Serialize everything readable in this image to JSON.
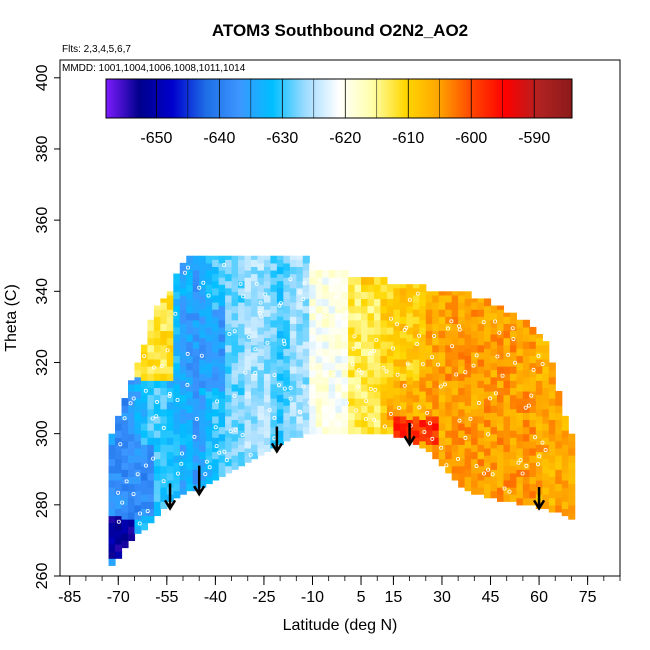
{
  "chart_data": {
    "type": "heatmap",
    "title": "ATOM3 Southbound O2N2_AO2",
    "annotations": {
      "flights": "Flts: 2,3,4,5,6,7",
      "dates": "MMDD: 1001,1004,1006,1008,1011,1014"
    },
    "xlabel": "Latitude (deg N)",
    "ylabel": "Theta (C)",
    "xlim": [
      -88,
      85
    ],
    "ylim": [
      260,
      405
    ],
    "x_major_ticks": [
      -85,
      -70,
      -55,
      -40,
      -25,
      -10,
      5,
      15,
      30,
      45,
      60,
      75
    ],
    "x_minor_tick_step": 5,
    "y_ticks": [
      260,
      280,
      300,
      320,
      340,
      360,
      380,
      400
    ],
    "colorbar": {
      "range": [
        -658,
        -584
      ],
      "tick_values": [
        -650,
        -640,
        -630,
        -620,
        -610,
        -600,
        -590
      ],
      "tick_labels": [
        "-650",
        "-640",
        "-630",
        "-620",
        "-610",
        "-600",
        "-590"
      ],
      "colors": [
        "#7e1cff",
        "#00008b",
        "#0000cd",
        "#1e6ee6",
        "#3c96ff",
        "#00bfff",
        "#9fdcff",
        "#ffffff",
        "#ffffaa",
        "#ffd700",
        "#ffa500",
        "#ff4500",
        "#ff0000",
        "#b22222",
        "#8b1a1a"
      ]
    },
    "columns": [
      {
        "lat": -72,
        "bottom": 263,
        "top": 300,
        "v": -636
      },
      {
        "lat": -70,
        "bottom": 265,
        "top": 305,
        "v": -640
      },
      {
        "lat": -68,
        "bottom": 268,
        "top": 310,
        "v": -638
      },
      {
        "lat": -66,
        "bottom": 270,
        "top": 315,
        "v": -636
      },
      {
        "lat": -64,
        "bottom": 272,
        "top": 320,
        "v": -634
      },
      {
        "lat": -62,
        "bottom": 273,
        "top": 325,
        "v": -632
      },
      {
        "lat": -60,
        "bottom": 275,
        "top": 332,
        "v": -630
      },
      {
        "lat": -58,
        "bottom": 277,
        "top": 336,
        "v": -630
      },
      {
        "lat": -56,
        "bottom": 279,
        "top": 338,
        "v": -630
      },
      {
        "lat": -54,
        "bottom": 281,
        "top": 340,
        "v": -632
      },
      {
        "lat": -52,
        "bottom": 282,
        "top": 345,
        "v": -632
      },
      {
        "lat": -50,
        "bottom": 283,
        "top": 348,
        "v": -634
      },
      {
        "lat": -48,
        "bottom": 284,
        "top": 350,
        "v": -634
      },
      {
        "lat": -46,
        "bottom": 284,
        "top": 350,
        "v": -636
      },
      {
        "lat": -44,
        "bottom": 285,
        "top": 350,
        "v": -634
      },
      {
        "lat": -42,
        "bottom": 286,
        "top": 350,
        "v": -632
      },
      {
        "lat": -40,
        "bottom": 287,
        "top": 350,
        "v": -630
      },
      {
        "lat": -38,
        "bottom": 288,
        "top": 350,
        "v": -630
      },
      {
        "lat": -36,
        "bottom": 289,
        "top": 350,
        "v": -628
      },
      {
        "lat": -34,
        "bottom": 290,
        "top": 350,
        "v": -628
      },
      {
        "lat": -32,
        "bottom": 291,
        "top": 350,
        "v": -628
      },
      {
        "lat": -30,
        "bottom": 292,
        "top": 350,
        "v": -626
      },
      {
        "lat": -28,
        "bottom": 293,
        "top": 350,
        "v": -626
      },
      {
        "lat": -26,
        "bottom": 294,
        "top": 350,
        "v": -626
      },
      {
        "lat": -24,
        "bottom": 295,
        "top": 350,
        "v": -626
      },
      {
        "lat": -22,
        "bottom": 296,
        "top": 350,
        "v": -628
      },
      {
        "lat": -20,
        "bottom": 297,
        "top": 350,
        "v": -630
      },
      {
        "lat": -18,
        "bottom": 298,
        "top": 350,
        "v": -628
      },
      {
        "lat": -16,
        "bottom": 299,
        "top": 350,
        "v": -626
      },
      {
        "lat": -14,
        "bottom": 299,
        "top": 350,
        "v": -626
      },
      {
        "lat": -12,
        "bottom": 300,
        "top": 350,
        "v": -626
      },
      {
        "lat": -10,
        "bottom": 300,
        "top": 348,
        "v": -624
      },
      {
        "lat": -8,
        "bottom": 300,
        "top": 346,
        "v": -622
      },
      {
        "lat": -6,
        "bottom": 300,
        "top": 346,
        "v": -621
      },
      {
        "lat": -4,
        "bottom": 300,
        "top": 346,
        "v": -619
      },
      {
        "lat": -2,
        "bottom": 300,
        "top": 346,
        "v": -617
      },
      {
        "lat": 0,
        "bottom": 300,
        "top": 346,
        "v": -615
      },
      {
        "lat": 2,
        "bottom": 300,
        "top": 344,
        "v": -613
      },
      {
        "lat": 4,
        "bottom": 300,
        "top": 344,
        "v": -611
      },
      {
        "lat": 6,
        "bottom": 300,
        "top": 344,
        "v": -610
      },
      {
        "lat": 8,
        "bottom": 300,
        "top": 344,
        "v": -610
      },
      {
        "lat": 10,
        "bottom": 300,
        "top": 344,
        "v": -610
      },
      {
        "lat": 12,
        "bottom": 300,
        "top": 344,
        "v": -610
      },
      {
        "lat": 14,
        "bottom": 300,
        "top": 342,
        "v": -610
      },
      {
        "lat": 16,
        "bottom": 299,
        "top": 342,
        "v": -609
      },
      {
        "lat": 18,
        "bottom": 299,
        "top": 342,
        "v": -609
      },
      {
        "lat": 20,
        "bottom": 298,
        "top": 342,
        "v": -610
      },
      {
        "lat": 22,
        "bottom": 297,
        "top": 342,
        "v": -609
      },
      {
        "lat": 24,
        "bottom": 296,
        "top": 342,
        "v": -608
      },
      {
        "lat": 26,
        "bottom": 295,
        "top": 340,
        "v": -606
      },
      {
        "lat": 28,
        "bottom": 293,
        "top": 340,
        "v": -606
      },
      {
        "lat": 30,
        "bottom": 291,
        "top": 340,
        "v": -606
      },
      {
        "lat": 32,
        "bottom": 289,
        "top": 340,
        "v": -605
      },
      {
        "lat": 34,
        "bottom": 287,
        "top": 340,
        "v": -605
      },
      {
        "lat": 36,
        "bottom": 285,
        "top": 340,
        "v": -605
      },
      {
        "lat": 38,
        "bottom": 284,
        "top": 340,
        "v": -605
      },
      {
        "lat": 40,
        "bottom": 283,
        "top": 338,
        "v": -605
      },
      {
        "lat": 42,
        "bottom": 283,
        "top": 338,
        "v": -605
      },
      {
        "lat": 44,
        "bottom": 282,
        "top": 338,
        "v": -605
      },
      {
        "lat": 46,
        "bottom": 282,
        "top": 336,
        "v": -605
      },
      {
        "lat": 48,
        "bottom": 281,
        "top": 336,
        "v": -605
      },
      {
        "lat": 50,
        "bottom": 281,
        "top": 334,
        "v": -605
      },
      {
        "lat": 52,
        "bottom": 281,
        "top": 334,
        "v": -605
      },
      {
        "lat": 54,
        "bottom": 280,
        "top": 332,
        "v": -605
      },
      {
        "lat": 56,
        "bottom": 280,
        "top": 332,
        "v": -605
      },
      {
        "lat": 58,
        "bottom": 280,
        "top": 330,
        "v": -605
      },
      {
        "lat": 60,
        "bottom": 279,
        "top": 328,
        "v": -606
      },
      {
        "lat": 62,
        "bottom": 279,
        "top": 326,
        "v": -606
      },
      {
        "lat": 64,
        "bottom": 278,
        "top": 320,
        "v": -606
      },
      {
        "lat": 66,
        "bottom": 278,
        "top": 312,
        "v": -606
      },
      {
        "lat": 68,
        "bottom": 277,
        "top": 305,
        "v": -606
      },
      {
        "lat": 70,
        "bottom": 276,
        "top": 300,
        "v": -605
      }
    ],
    "patches": [
      {
        "lat0": -64,
        "lat1": -54,
        "theta0": 315,
        "theta1": 340,
        "v": -612
      },
      {
        "lat0": -74,
        "lat1": -66,
        "theta0": 264,
        "theta1": 282,
        "v": -652
      },
      {
        "lat0": -72,
        "lat1": -60,
        "theta0": 276,
        "theta1": 296,
        "v": -638
      },
      {
        "lat0": -50,
        "lat1": -38,
        "theta0": 312,
        "theta1": 334,
        "v": -636
      },
      {
        "lat0": 16,
        "lat1": 28,
        "theta0": 297,
        "theta1": 306,
        "v": -598
      },
      {
        "lat0": 14,
        "lat1": 30,
        "theta0": 304,
        "theta1": 314,
        "v": -606
      },
      {
        "lat0": 0,
        "lat1": 10,
        "theta0": 300,
        "theta1": 340,
        "v": -613
      },
      {
        "lat0": -10,
        "lat1": 0,
        "theta0": 300,
        "theta1": 346,
        "v": -620
      },
      {
        "lat0": 64,
        "lat1": 72,
        "theta0": 276,
        "theta1": 300,
        "v": -606
      }
    ],
    "arrows": [
      {
        "lat": -54,
        "theta_top": 286,
        "theta_tip": 279
      },
      {
        "lat": -45,
        "theta_top": 291,
        "theta_tip": 283
      },
      {
        "lat": -21,
        "theta_top": 302,
        "theta_tip": 295
      },
      {
        "lat": 20,
        "theta_top": 303,
        "theta_tip": 297
      },
      {
        "lat": 60,
        "theta_top": 285,
        "theta_tip": 279
      }
    ]
  }
}
